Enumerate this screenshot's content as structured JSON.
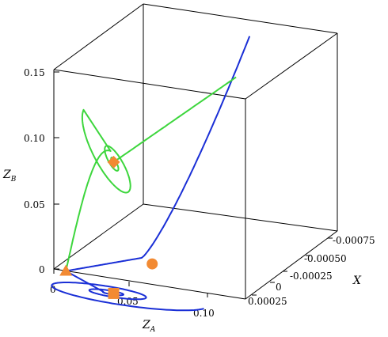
{
  "chart_data": {
    "type": "line",
    "subtype": "3d-trajectory",
    "axes": {
      "x": {
        "label": "Z",
        "label_sub": "A",
        "ticks": [
          "0",
          "0.05",
          "0.10"
        ],
        "range": [
          0,
          0.13
        ]
      },
      "y": {
        "label": "X",
        "label_sub": "",
        "ticks": [
          "-0.00075",
          "-0.00050",
          "-0.00025",
          "0",
          "0.00025"
        ],
        "range": [
          -0.0009,
          0.0003
        ]
      },
      "z": {
        "label": "Z",
        "label_sub": "B",
        "ticks": [
          "0",
          "0.05",
          "0.10",
          "0.15"
        ],
        "range": [
          0,
          0.15
        ]
      }
    },
    "colors": {
      "blue": "#1a2fd6",
      "green": "#3dd63d",
      "marker": "#f28a33"
    },
    "series": [
      {
        "color": "blue",
        "shape": "spiral-in-ZA-plane",
        "center_ZA": 0.05,
        "center_X": 0.0002,
        "max_ZA": 0.115,
        "ZB": 0
      },
      {
        "color": "blue",
        "shape": "line",
        "points": [
          [
            0.008,
            0.0,
            0.0
          ],
          [
            0.04,
            -0.00035,
            0.0
          ],
          [
            0.08,
            -0.0009,
            0.15
          ]
        ]
      },
      {
        "color": "green",
        "shape": "spiral-to-line",
        "start": [
          0.008,
          0.0,
          0.0
        ],
        "spiral_center": [
          0.05,
          0.0002,
          0.1
        ],
        "end": [
          0.075,
          -0.0009,
          0.12
        ]
      }
    ],
    "markers": [
      {
        "shape": "triangle",
        "color": "marker",
        "ZA": 0.008,
        "X": 0.0,
        "ZB": 0.0
      },
      {
        "shape": "square",
        "color": "marker",
        "ZA": 0.05,
        "X": 0.0002,
        "ZB": 0.0
      },
      {
        "shape": "circle",
        "color": "marker",
        "ZA": 0.05,
        "X": -0.0003,
        "ZB": 0.0
      },
      {
        "shape": "diamond",
        "color": "marker",
        "ZA": 0.05,
        "X": 0.0002,
        "ZB": 0.1
      }
    ],
    "grid": false,
    "legend": "none"
  }
}
